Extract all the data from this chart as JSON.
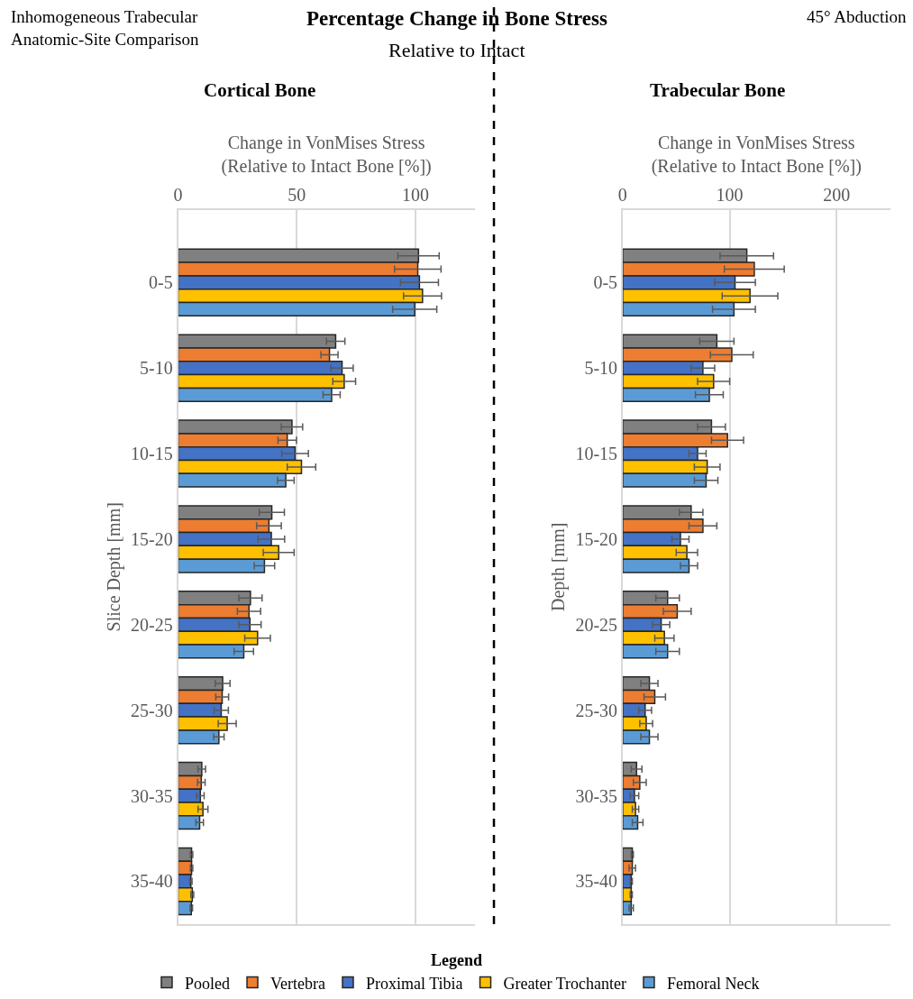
{
  "chart_data": [
    {
      "type": "bar",
      "orientation": "horizontal",
      "title": "Cortical Bone",
      "annotations": [
        "Inhomogeneous Trabecular\nAnatomic-Site Comparison",
        "Percentage Change in Bone Stress",
        "Relative to Intact",
        "45° Abduction"
      ],
      "xlabel": "Change in VonMises Stress\n(Relative to Intact Bone [%])",
      "ylabel": "Slice Depth [mm]",
      "categories": [
        "0-5",
        "5-10",
        "10-15",
        "15-20",
        "20-25",
        "25-30",
        "30-35",
        "35-40"
      ],
      "series": [
        {
          "name": "Pooled",
          "color": "#808080",
          "values": [
            101.3,
            66.4,
            48,
            39.5,
            30.5,
            18.8,
            10,
            5.7
          ],
          "errors": [
            8.7,
            3.9,
            4.5,
            5.3,
            4.9,
            3.1,
            1.6,
            0.5
          ]
        },
        {
          "name": "Vertebra",
          "color": "#ed7d31",
          "values": [
            101,
            63.8,
            46,
            38.3,
            29.9,
            18.6,
            9.8,
            5.7
          ],
          "errors": [
            9.8,
            3.6,
            3.9,
            5.2,
            4.9,
            2.7,
            1.6,
            0.5
          ]
        },
        {
          "name": "Proximal Tibia",
          "color": "#4472c4",
          "values": [
            101.7,
            69.1,
            49.3,
            39.3,
            30.3,
            18.2,
            9.4,
            5.4
          ],
          "errors": [
            8,
            4.7,
            5.6,
            5.6,
            4.7,
            3,
            1.6,
            0.5
          ]
        },
        {
          "name": "Greater Trochanter",
          "color": "#ffc000",
          "values": [
            103,
            70,
            52,
            42.4,
            33.5,
            20.7,
            10.5,
            6
          ],
          "errors": [
            8,
            4.8,
            6,
            6.5,
            5.4,
            3.8,
            2.1,
            0.6
          ]
        },
        {
          "name": "Femoral Neck",
          "color": "#5b9bd5",
          "values": [
            99.7,
            64.7,
            45.4,
            36.4,
            27.7,
            17.2,
            9.1,
            5.6
          ],
          "errors": [
            9.3,
            3.6,
            3.5,
            4.3,
            4.1,
            2.2,
            1.6,
            0.5
          ]
        }
      ],
      "xlim": [
        0,
        125
      ],
      "xticks": [
        0,
        50,
        100
      ],
      "grid": "x",
      "legend": "bottom",
      "legend_title": "Legend"
    },
    {
      "type": "bar",
      "orientation": "horizontal",
      "title": "Trabecular Bone",
      "xlabel": "Change in VonMises Stress\n(Relative to Intact Bone [%])",
      "ylabel": "Depth [mm]",
      "categories": [
        "0-5",
        "5-10",
        "10-15",
        "15-20",
        "20-25",
        "25-30",
        "30-35",
        "35-40"
      ],
      "series": [
        {
          "color": "#808080",
          "values": [
            116,
            88,
            83,
            64,
            42,
            25,
            13,
            9
          ],
          "errors": [
            25,
            16,
            13,
            11,
            11,
            8,
            5,
            1
          ]
        },
        {
          "color": "#ed7d31",
          "values": [
            123,
            102,
            98,
            75,
            51,
            30,
            16,
            9
          ],
          "errors": [
            28,
            20,
            15,
            13,
            13,
            10,
            6,
            3
          ]
        },
        {
          "color": "#4472c4",
          "values": [
            105,
            75,
            70,
            54,
            36,
            21,
            11,
            8
          ],
          "errors": [
            19,
            11,
            8,
            8,
            8,
            6,
            4,
            1
          ]
        },
        {
          "color": "#ffc000",
          "values": [
            119,
            85,
            79,
            60,
            39,
            22,
            12,
            8
          ],
          "errors": [
            26,
            15,
            12,
            10,
            9,
            6,
            3,
            1
          ]
        },
        {
          "color": "#5b9bd5",
          "values": [
            104,
            81,
            78,
            62,
            42,
            25,
            14,
            8
          ],
          "errors": [
            20,
            13,
            11,
            8,
            11,
            8,
            5,
            2
          ]
        }
      ],
      "xlim": [
        0,
        250
      ],
      "xticks": [
        0,
        100,
        200
      ],
      "grid": "x"
    }
  ]
}
